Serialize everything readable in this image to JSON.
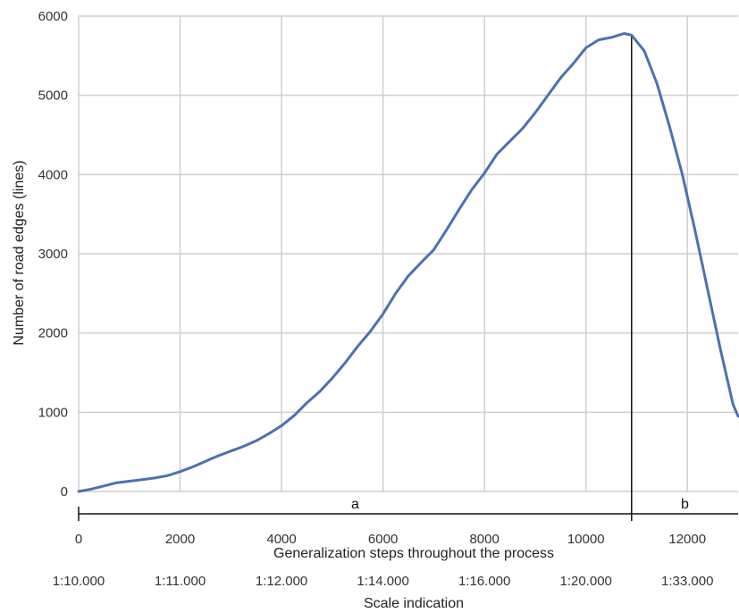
{
  "chart_data": {
    "type": "line",
    "xlabel": "Generalization steps throughout the process",
    "ylabel": "Number of road edges (lines)",
    "secondary_xlabel": "Scale indication",
    "xlim": [
      0,
      13000
    ],
    "ylim": [
      0,
      6000
    ],
    "grid": true,
    "x_ticks": [
      0,
      2000,
      4000,
      6000,
      8000,
      10000,
      12000
    ],
    "y_ticks": [
      0,
      1000,
      2000,
      3000,
      4000,
      5000,
      6000
    ],
    "scale_ticks": [
      "1:10.000",
      "1:11.000",
      "1:12.000",
      "1:14.000",
      "1:16.000",
      "1:20.000",
      "1:33.000"
    ],
    "color": "#4a72b0",
    "divider_x": 10900,
    "regions": [
      {
        "label": "a",
        "from": 0,
        "to": 10900
      },
      {
        "label": "b",
        "from": 10900,
        "to": 13000
      }
    ],
    "series": [
      {
        "x": [
          0,
          250,
          500,
          750,
          1000,
          1250,
          1500,
          1750,
          2000,
          2250,
          2500,
          2750,
          3000,
          3250,
          3500,
          3750,
          4000,
          4250,
          4500,
          4750,
          5000,
          5250,
          5500,
          5750,
          6000,
          6250,
          6500,
          6750,
          7000,
          7250,
          7500,
          7750,
          8000,
          8250,
          8500,
          8750,
          9000,
          9250,
          9500,
          9750,
          10000,
          10250,
          10500,
          10750,
          10900,
          11150,
          11400,
          11650,
          11900,
          12150,
          12400,
          12650,
          12900,
          13000
        ],
        "y": [
          0,
          30,
          70,
          110,
          130,
          150,
          170,
          200,
          250,
          310,
          380,
          450,
          510,
          570,
          640,
          730,
          830,
          960,
          1120,
          1260,
          1430,
          1620,
          1830,
          2020,
          2240,
          2500,
          2720,
          2890,
          3050,
          3300,
          3560,
          3810,
          4020,
          4260,
          4420,
          4580,
          4780,
          5000,
          5220,
          5400,
          5600,
          5700,
          5730,
          5780,
          5760,
          5560,
          5150,
          4600,
          4000,
          3300,
          2550,
          1800,
          1100,
          950
        ]
      }
    ]
  }
}
